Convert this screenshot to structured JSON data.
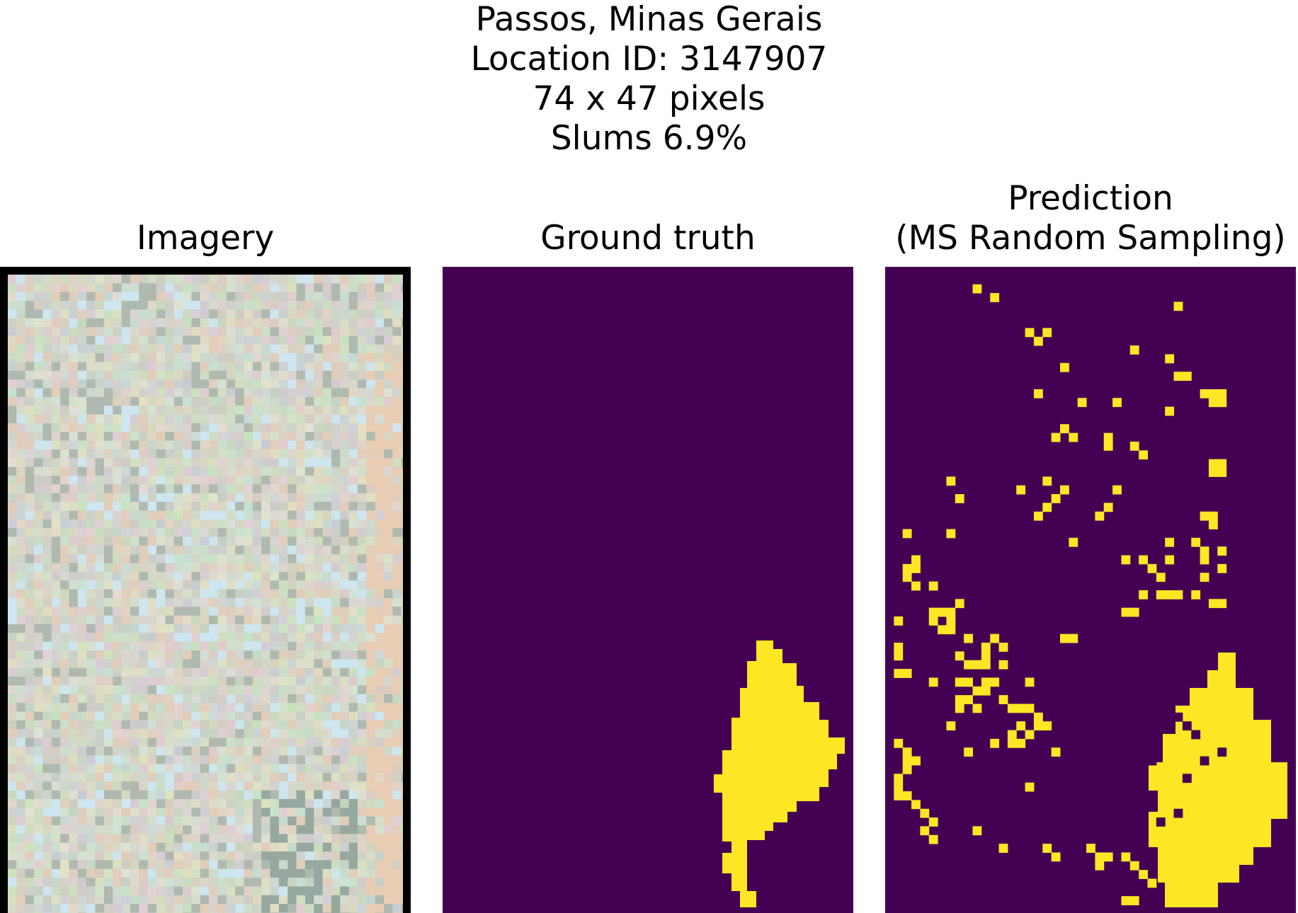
{
  "figure": {
    "title_lines": [
      "Passos, Minas Gerais",
      "Location ID: 3147907",
      "74 x 47 pixels",
      "Slums 6.9%"
    ],
    "panels": [
      {
        "key": "imagery",
        "title": "Imagery"
      },
      {
        "key": "ground_truth",
        "title": "Ground truth"
      },
      {
        "key": "prediction",
        "title_lines": [
          "Prediction",
          "(MS Random Sampling)"
        ]
      }
    ]
  },
  "colors": {
    "background_class": "#440154",
    "slum_class": "#fde725",
    "imagery_base": "#d4d6c9",
    "panel_border": "#000000"
  }
}
